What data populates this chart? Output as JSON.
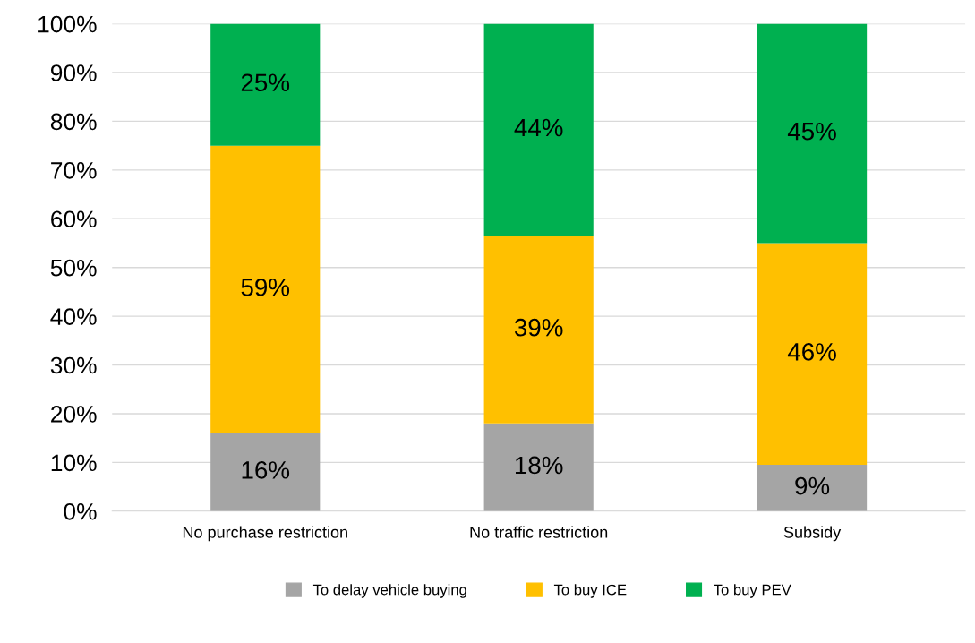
{
  "chart_data": {
    "type": "bar",
    "stacked": true,
    "categories": [
      "No purchase restriction",
      "No traffic restriction",
      "Subsidy"
    ],
    "series": [
      {
        "name": "To delay vehicle buying",
        "color": "#a5a5a5",
        "values": [
          16,
          18,
          9.5
        ],
        "value_labels": [
          "16%",
          "18%",
          "9%"
        ]
      },
      {
        "name": "To buy ICE",
        "color": "#ffc000",
        "values": [
          59,
          38.5,
          45.5
        ],
        "value_labels": [
          "59%",
          "39%",
          "46%"
        ]
      },
      {
        "name": "To buy PEV",
        "color": "#00b050",
        "values": [
          25,
          43.5,
          45
        ],
        "value_labels": [
          "25%",
          "44%",
          "45%"
        ]
      }
    ],
    "ylim": [
      0,
      100
    ],
    "yticks": [
      {
        "value": 0,
        "label": "0%"
      },
      {
        "value": 10,
        "label": "10%"
      },
      {
        "value": 20,
        "label": "20%"
      },
      {
        "value": 30,
        "label": "30%"
      },
      {
        "value": 40,
        "label": "40%"
      },
      {
        "value": 50,
        "label": "50%"
      },
      {
        "value": 60,
        "label": "60%"
      },
      {
        "value": 70,
        "label": "70%"
      },
      {
        "value": 80,
        "label": "80%"
      },
      {
        "value": 90,
        "label": "90%"
      },
      {
        "value": 100,
        "label": "100%"
      }
    ],
    "grid": "y",
    "legend": "bottom"
  }
}
